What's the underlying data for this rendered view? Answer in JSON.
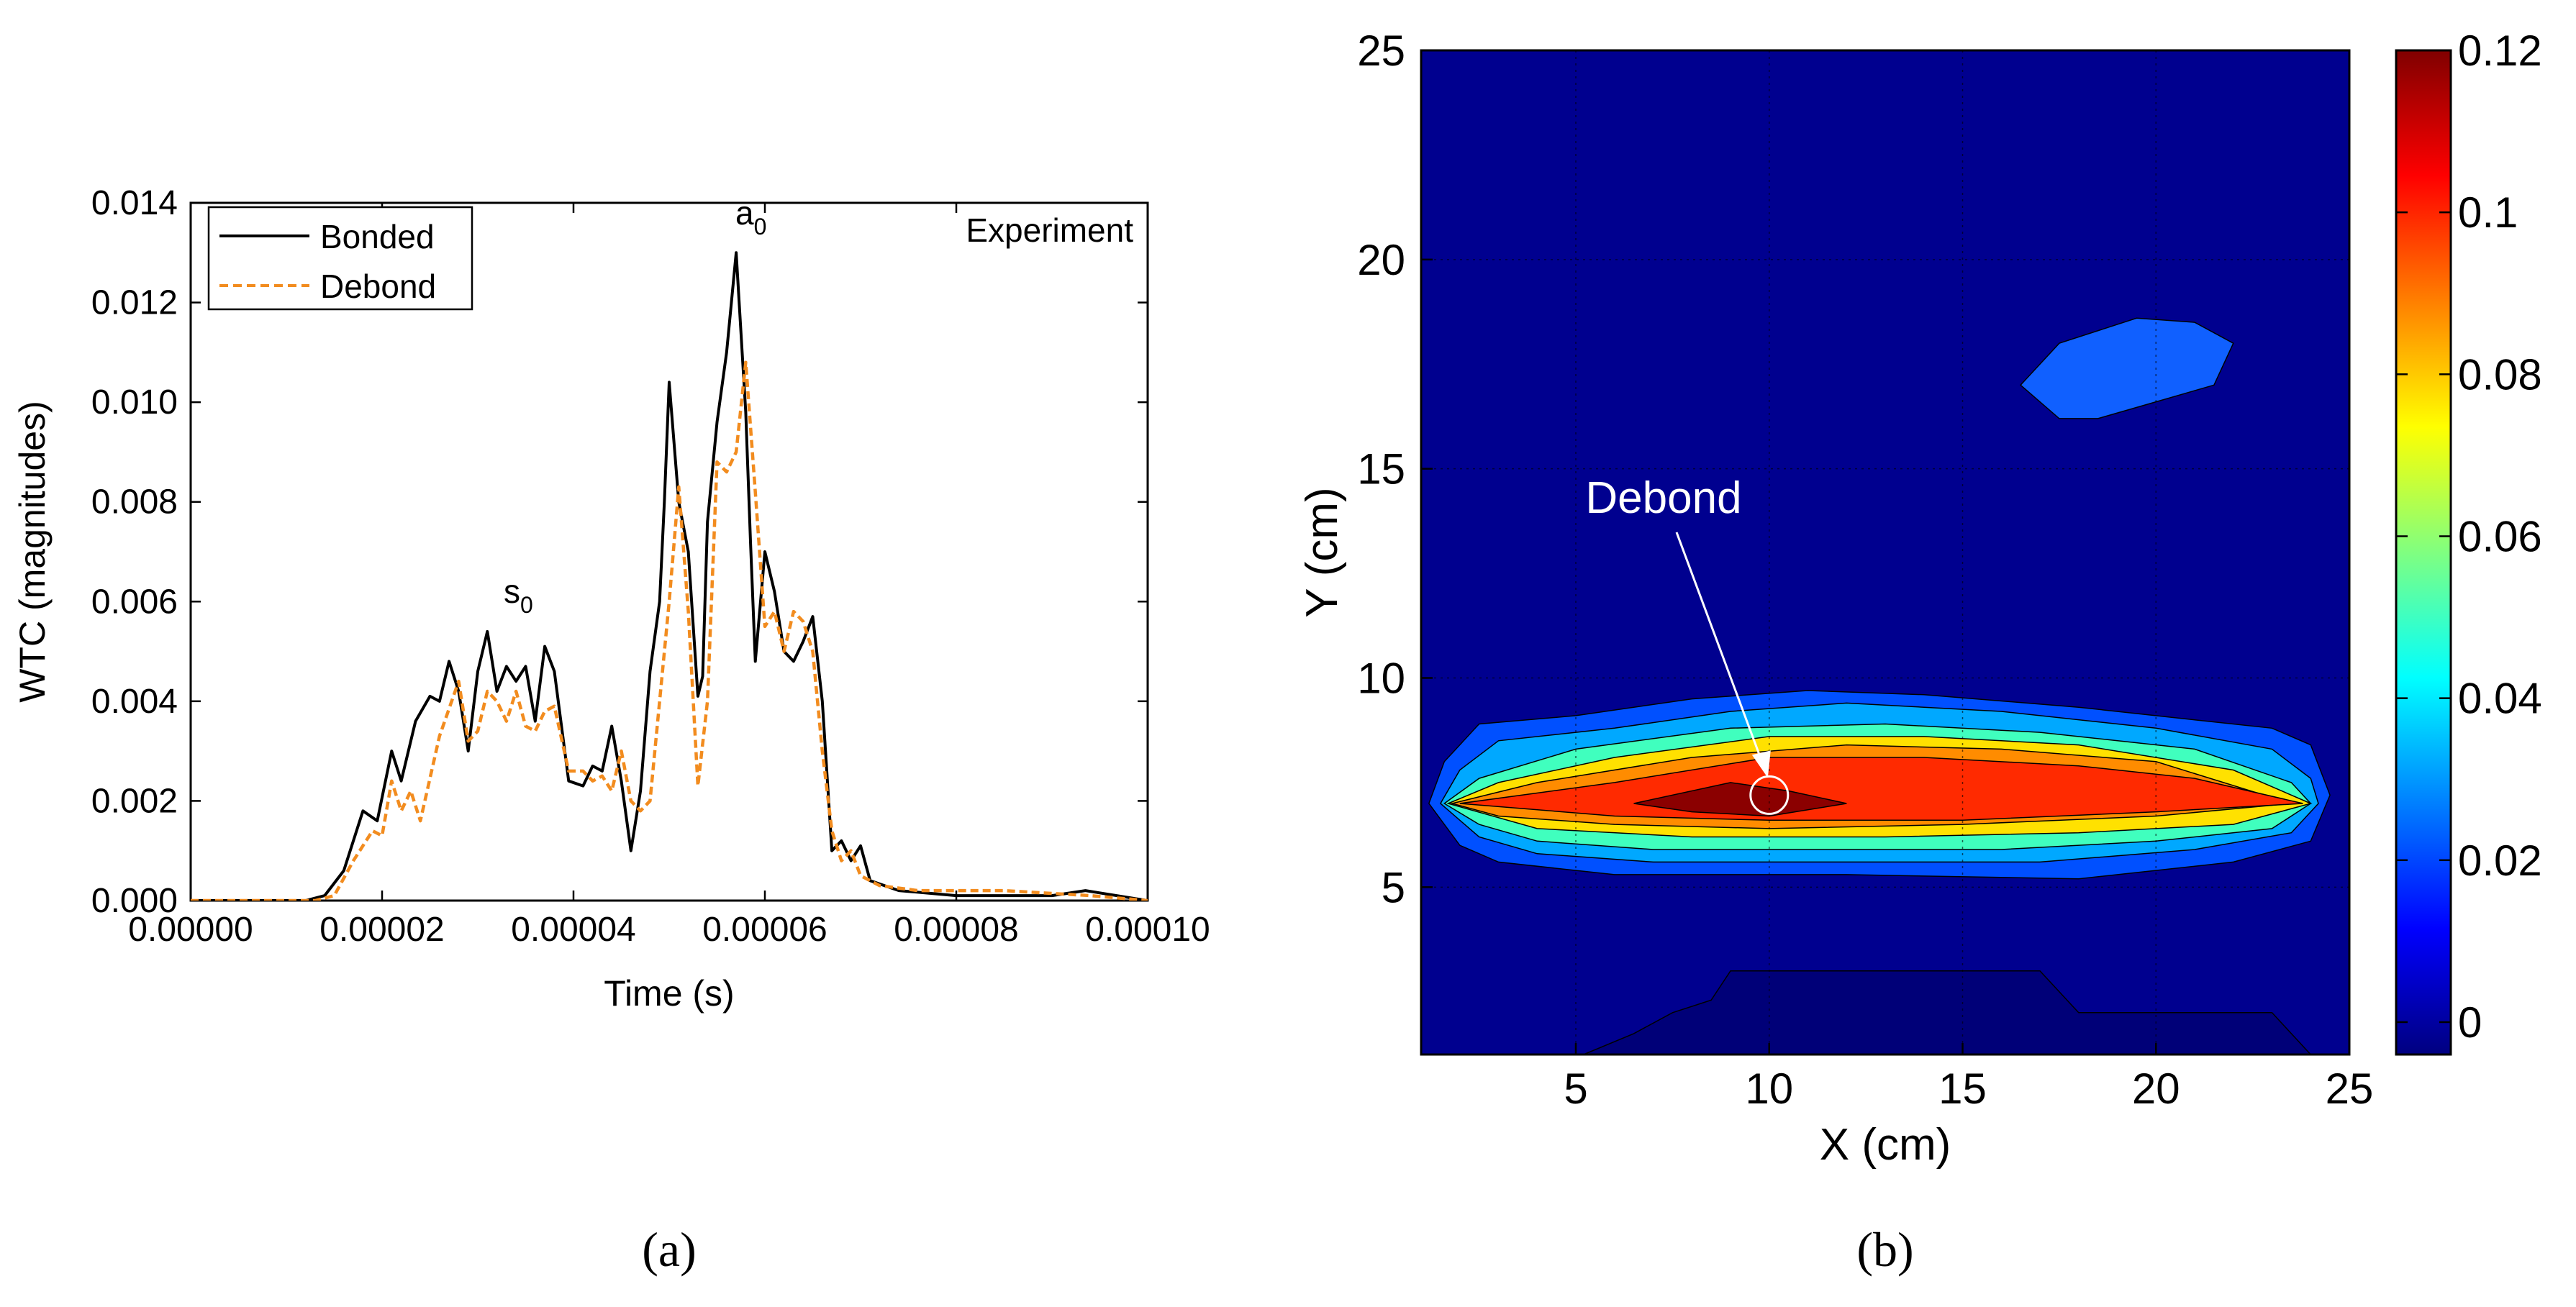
{
  "chart_data": [
    {
      "type": "line",
      "panel_label": "(a)",
      "xlabel": "Time (s)",
      "ylabel": "WTC (magnitudes)",
      "annotation": "Experiment",
      "peak_labels": {
        "s0": "s",
        "s0_sub": "0",
        "a0": "a",
        "a0_sub": "0"
      },
      "xlim": [
        0,
        0.0001
      ],
      "ylim": [
        0,
        0.014
      ],
      "xticks": [
        "0.00000",
        "0.00002",
        "0.00004",
        "0.00006",
        "0.00008",
        "0.00010"
      ],
      "yticks": [
        "0.000",
        "0.002",
        "0.004",
        "0.006",
        "0.008",
        "0.010",
        "0.012",
        "0.014"
      ],
      "legend": {
        "position": "top-left"
      },
      "series": [
        {
          "name": "Bonded",
          "color": "#000000",
          "style": "solid",
          "points": [
            [
              0,
              0
            ],
            [
              1.2e-05,
              0
            ],
            [
              1.4e-05,
              0.0001
            ],
            [
              1.6e-05,
              0.0006
            ],
            [
              1.8e-05,
              0.0018
            ],
            [
              1.95e-05,
              0.0016
            ],
            [
              2.1e-05,
              0.003
            ],
            [
              2.2e-05,
              0.0024
            ],
            [
              2.35e-05,
              0.0036
            ],
            [
              2.5e-05,
              0.0041
            ],
            [
              2.6e-05,
              0.004
            ],
            [
              2.7e-05,
              0.0048
            ],
            [
              2.8e-05,
              0.0042
            ],
            [
              2.9e-05,
              0.003
            ],
            [
              3e-05,
              0.0046
            ],
            [
              3.1e-05,
              0.0054
            ],
            [
              3.2e-05,
              0.0042
            ],
            [
              3.3e-05,
              0.0047
            ],
            [
              3.4e-05,
              0.0044
            ],
            [
              3.5e-05,
              0.0047
            ],
            [
              3.6e-05,
              0.0036
            ],
            [
              3.7e-05,
              0.0051
            ],
            [
              3.8e-05,
              0.0046
            ],
            [
              3.95e-05,
              0.0024
            ],
            [
              4.1e-05,
              0.0023
            ],
            [
              4.2e-05,
              0.0027
            ],
            [
              4.3e-05,
              0.0026
            ],
            [
              4.4e-05,
              0.0035
            ],
            [
              4.5e-05,
              0.0024
            ],
            [
              4.6e-05,
              0.001
            ],
            [
              4.7e-05,
              0.0022
            ],
            [
              4.8e-05,
              0.0046
            ],
            [
              4.9e-05,
              0.006
            ],
            [
              4.95e-05,
              0.008
            ],
            [
              5e-05,
              0.0104
            ],
            [
              5.1e-05,
              0.008
            ],
            [
              5.2e-05,
              0.007
            ],
            [
              5.3e-05,
              0.0041
            ],
            [
              5.35e-05,
              0.0045
            ],
            [
              5.4e-05,
              0.0076
            ],
            [
              5.5e-05,
              0.0096
            ],
            [
              5.6e-05,
              0.011
            ],
            [
              5.7e-05,
              0.013
            ],
            [
              5.8e-05,
              0.0098
            ],
            [
              5.85e-05,
              0.0072
            ],
            [
              5.9e-05,
              0.0048
            ],
            [
              6e-05,
              0.007
            ],
            [
              6.1e-05,
              0.0062
            ],
            [
              6.2e-05,
              0.005
            ],
            [
              6.3e-05,
              0.0048
            ],
            [
              6.4e-05,
              0.0052
            ],
            [
              6.5e-05,
              0.0057
            ],
            [
              6.6e-05,
              0.004
            ],
            [
              6.7e-05,
              0.001
            ],
            [
              6.8e-05,
              0.0012
            ],
            [
              6.9e-05,
              0.0008
            ],
            [
              7e-05,
              0.0011
            ],
            [
              7.1e-05,
              0.0004
            ],
            [
              7.4e-05,
              0.0002
            ],
            [
              8e-05,
              0.0001
            ],
            [
              9e-05,
              0.0001
            ],
            [
              9.35e-05,
              0.0002
            ],
            [
              0.0001,
              0
            ]
          ]
        },
        {
          "name": "Debond",
          "color": "#f28c1f",
          "style": "dashed",
          "points": [
            [
              0,
              0
            ],
            [
              1.3e-05,
              0
            ],
            [
              1.5e-05,
              0.0001
            ],
            [
              1.7e-05,
              0.0008
            ],
            [
              1.9e-05,
              0.0014
            ],
            [
              2e-05,
              0.0013
            ],
            [
              2.1e-05,
              0.0024
            ],
            [
              2.2e-05,
              0.0018
            ],
            [
              2.3e-05,
              0.0022
            ],
            [
              2.4e-05,
              0.0016
            ],
            [
              2.6e-05,
              0.0033
            ],
            [
              2.8e-05,
              0.0044
            ],
            [
              2.9e-05,
              0.0032
            ],
            [
              3e-05,
              0.0034
            ],
            [
              3.1e-05,
              0.0042
            ],
            [
              3.2e-05,
              0.004
            ],
            [
              3.3e-05,
              0.0036
            ],
            [
              3.4e-05,
              0.0042
            ],
            [
              3.5e-05,
              0.0035
            ],
            [
              3.6e-05,
              0.0034
            ],
            [
              3.7e-05,
              0.0038
            ],
            [
              3.8e-05,
              0.0039
            ],
            [
              3.95e-05,
              0.0026
            ],
            [
              4.1e-05,
              0.0026
            ],
            [
              4.2e-05,
              0.0024
            ],
            [
              4.3e-05,
              0.0025
            ],
            [
              4.4e-05,
              0.0022
            ],
            [
              4.5e-05,
              0.003
            ],
            [
              4.6e-05,
              0.002
            ],
            [
              4.7e-05,
              0.0018
            ],
            [
              4.8e-05,
              0.002
            ],
            [
              4.9e-05,
              0.004
            ],
            [
              5e-05,
              0.006
            ],
            [
              5.1e-05,
              0.0083
            ],
            [
              5.2e-05,
              0.0058
            ],
            [
              5.3e-05,
              0.0023
            ],
            [
              5.4e-05,
              0.004
            ],
            [
              5.5e-05,
              0.0088
            ],
            [
              5.6e-05,
              0.0086
            ],
            [
              5.7e-05,
              0.009
            ],
            [
              5.8e-05,
              0.0108
            ],
            [
              5.9e-05,
              0.0082
            ],
            [
              6e-05,
              0.0055
            ],
            [
              6.1e-05,
              0.0058
            ],
            [
              6.2e-05,
              0.005
            ],
            [
              6.3e-05,
              0.0058
            ],
            [
              6.4e-05,
              0.0056
            ],
            [
              6.5e-05,
              0.005
            ],
            [
              6.6e-05,
              0.003
            ],
            [
              6.7e-05,
              0.0014
            ],
            [
              6.8e-05,
              0.0008
            ],
            [
              6.9e-05,
              0.001
            ],
            [
              7e-05,
              0.0005
            ],
            [
              7.2e-05,
              0.0003
            ],
            [
              7.6e-05,
              0.0002
            ],
            [
              8.5e-05,
              0.0002
            ],
            [
              9.4e-05,
              0.0001
            ],
            [
              0.0001,
              0
            ]
          ]
        }
      ]
    },
    {
      "type": "contour",
      "panel_label": "(b)",
      "xlabel": "X (cm)",
      "ylabel": "Y (cm)",
      "annotation": "Debond",
      "xlim": [
        1,
        25
      ],
      "ylim": [
        1,
        25
      ],
      "xticks": [
        "5",
        "10",
        "15",
        "20",
        "25"
      ],
      "yticks": [
        "5",
        "10",
        "15",
        "20",
        "25"
      ],
      "colorbar": {
        "colormap": "jet",
        "range": [
          -0.004,
          0.12
        ],
        "ticks": [
          "0",
          "0.02",
          "0.04",
          "0.06",
          "0.08",
          "0.1",
          "0.12"
        ]
      },
      "debond_location": [
        10,
        7.2
      ],
      "contour_levels": [
        {
          "level": 0.01,
          "color": "#0050ff",
          "points": [
            [
              1.2,
              7.0
            ],
            [
              1.6,
              8.0
            ],
            [
              2.5,
              8.9
            ],
            [
              5,
              9.1
            ],
            [
              8,
              9.5
            ],
            [
              11,
              9.7
            ],
            [
              14,
              9.6
            ],
            [
              18,
              9.3
            ],
            [
              21,
              9.0
            ],
            [
              23,
              8.8
            ],
            [
              24,
              8.4
            ],
            [
              24.5,
              7.2
            ],
            [
              24,
              6.1
            ],
            [
              22,
              5.6
            ],
            [
              18,
              5.2
            ],
            [
              12,
              5.3
            ],
            [
              6,
              5.3
            ],
            [
              3,
              5.6
            ],
            [
              2,
              6.0
            ]
          ]
        },
        {
          "level": 0.025,
          "color": "#00a8ff",
          "points": [
            [
              1.5,
              7.0
            ],
            [
              2.0,
              7.8
            ],
            [
              3,
              8.5
            ],
            [
              6,
              8.8
            ],
            [
              9,
              9.2
            ],
            [
              12,
              9.4
            ],
            [
              16,
              9.2
            ],
            [
              20,
              8.8
            ],
            [
              23,
              8.3
            ],
            [
              24,
              7.6
            ],
            [
              24.2,
              7.0
            ],
            [
              23.5,
              6.3
            ],
            [
              21,
              5.9
            ],
            [
              17,
              5.6
            ],
            [
              12,
              5.6
            ],
            [
              7,
              5.6
            ],
            [
              4,
              5.8
            ],
            [
              2.5,
              6.2
            ]
          ]
        },
        {
          "level": 0.045,
          "color": "#40ffbe",
          "points": [
            [
              1.6,
              7.0
            ],
            [
              2.5,
              7.6
            ],
            [
              5,
              8.3
            ],
            [
              9,
              8.8
            ],
            [
              13,
              8.9
            ],
            [
              17,
              8.7
            ],
            [
              21,
              8.3
            ],
            [
              23.5,
              7.5
            ],
            [
              24,
              7.0
            ],
            [
              23,
              6.4
            ],
            [
              20,
              6.1
            ],
            [
              16,
              5.9
            ],
            [
              11,
              5.9
            ],
            [
              7,
              5.9
            ],
            [
              4,
              6.1
            ],
            [
              2.5,
              6.5
            ]
          ]
        },
        {
          "level": 0.06,
          "color": "#ffe100",
          "points": [
            [
              1.7,
              7.0
            ],
            [
              3,
              7.5
            ],
            [
              6,
              8.1
            ],
            [
              10,
              8.6
            ],
            [
              14,
              8.6
            ],
            [
              18,
              8.4
            ],
            [
              22,
              7.8
            ],
            [
              24,
              7.0
            ],
            [
              22,
              6.5
            ],
            [
              18,
              6.3
            ],
            [
              13,
              6.2
            ],
            [
              8,
              6.2
            ],
            [
              4,
              6.4
            ]
          ]
        },
        {
          "level": 0.08,
          "color": "#ff8c00",
          "points": [
            [
              1.8,
              7.0
            ],
            [
              4,
              7.5
            ],
            [
              8,
              8.1
            ],
            [
              12,
              8.4
            ],
            [
              16,
              8.3
            ],
            [
              20,
              8.0
            ],
            [
              23.5,
              7.0
            ],
            [
              20,
              6.7
            ],
            [
              15,
              6.5
            ],
            [
              10,
              6.4
            ],
            [
              6,
              6.5
            ],
            [
              3,
              6.7
            ]
          ]
        },
        {
          "level": 0.1,
          "color": "#ff2a00",
          "points": [
            [
              2.0,
              7.0
            ],
            [
              6,
              7.5
            ],
            [
              10,
              8.1
            ],
            [
              14,
              8.1
            ],
            [
              18,
              7.9
            ],
            [
              21,
              7.6
            ],
            [
              23.8,
              7.0
            ],
            [
              20,
              6.8
            ],
            [
              15,
              6.6
            ],
            [
              10,
              6.6
            ],
            [
              6,
              6.7
            ]
          ]
        },
        {
          "level": 0.12,
          "color": "#8b0000",
          "points": [
            [
              6.5,
              7.0
            ],
            [
              9,
              7.5
            ],
            [
              10.5,
              7.3
            ],
            [
              12,
              7.0
            ],
            [
              10,
              6.7
            ],
            [
              8,
              6.8
            ]
          ]
        },
        {
          "level": 0.02,
          "color": "#1060ff",
          "points": [
            [
              16.5,
              17.0
            ],
            [
              17.5,
              18.0
            ],
            [
              19.5,
              18.6
            ],
            [
              21,
              18.5
            ],
            [
              22,
              18.0
            ],
            [
              21.5,
              17.0
            ],
            [
              20,
              16.6
            ],
            [
              18.5,
              16.2
            ],
            [
              17.5,
              16.2
            ]
          ]
        },
        {
          "level": -0.004,
          "color": "#000078",
          "points": [
            [
              5.2,
              1.0
            ],
            [
              6.5,
              1.5
            ],
            [
              7.5,
              2.0
            ],
            [
              8.5,
              2.3
            ],
            [
              9,
              3.0
            ],
            [
              14,
              3.0
            ],
            [
              17,
              3.0
            ],
            [
              18,
              2.0
            ],
            [
              23,
              2.0
            ],
            [
              24,
              1.0
            ]
          ]
        }
      ]
    }
  ]
}
